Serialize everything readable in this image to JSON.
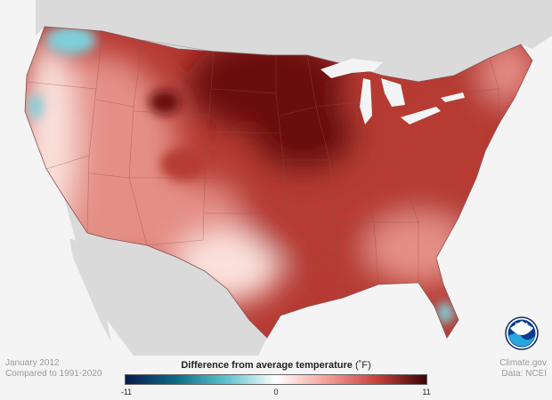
{
  "caption": {
    "period": "January 2012",
    "baseline": "Compared to 1991-2020"
  },
  "credits": {
    "publisher": "Climate.gov",
    "data_source": "Data: NCEI"
  },
  "legend": {
    "title": "Difference from average temperature",
    "unit": "(˚F)",
    "min_label": "-11",
    "mid_label": "0",
    "max_label": "11",
    "min_value": -11,
    "max_value": 11,
    "colors": [
      "#0b1a4d",
      "#0e6b86",
      "#5cc2cc",
      "#ffffff",
      "#f4a09a",
      "#c8413a",
      "#3a0505"
    ]
  },
  "logo": {
    "text": "NOAA",
    "icon": "noaa-logo-icon"
  },
  "map_colors": {
    "land_outside": "#dadada",
    "water": "#f4f4f4",
    "state_lines": "#8a5050",
    "very_warm": "#6a1010",
    "warm": "#b63a33",
    "mild": "#e48f86",
    "near_normal": "#fbe1dd",
    "cool": "#7fd0da"
  }
}
